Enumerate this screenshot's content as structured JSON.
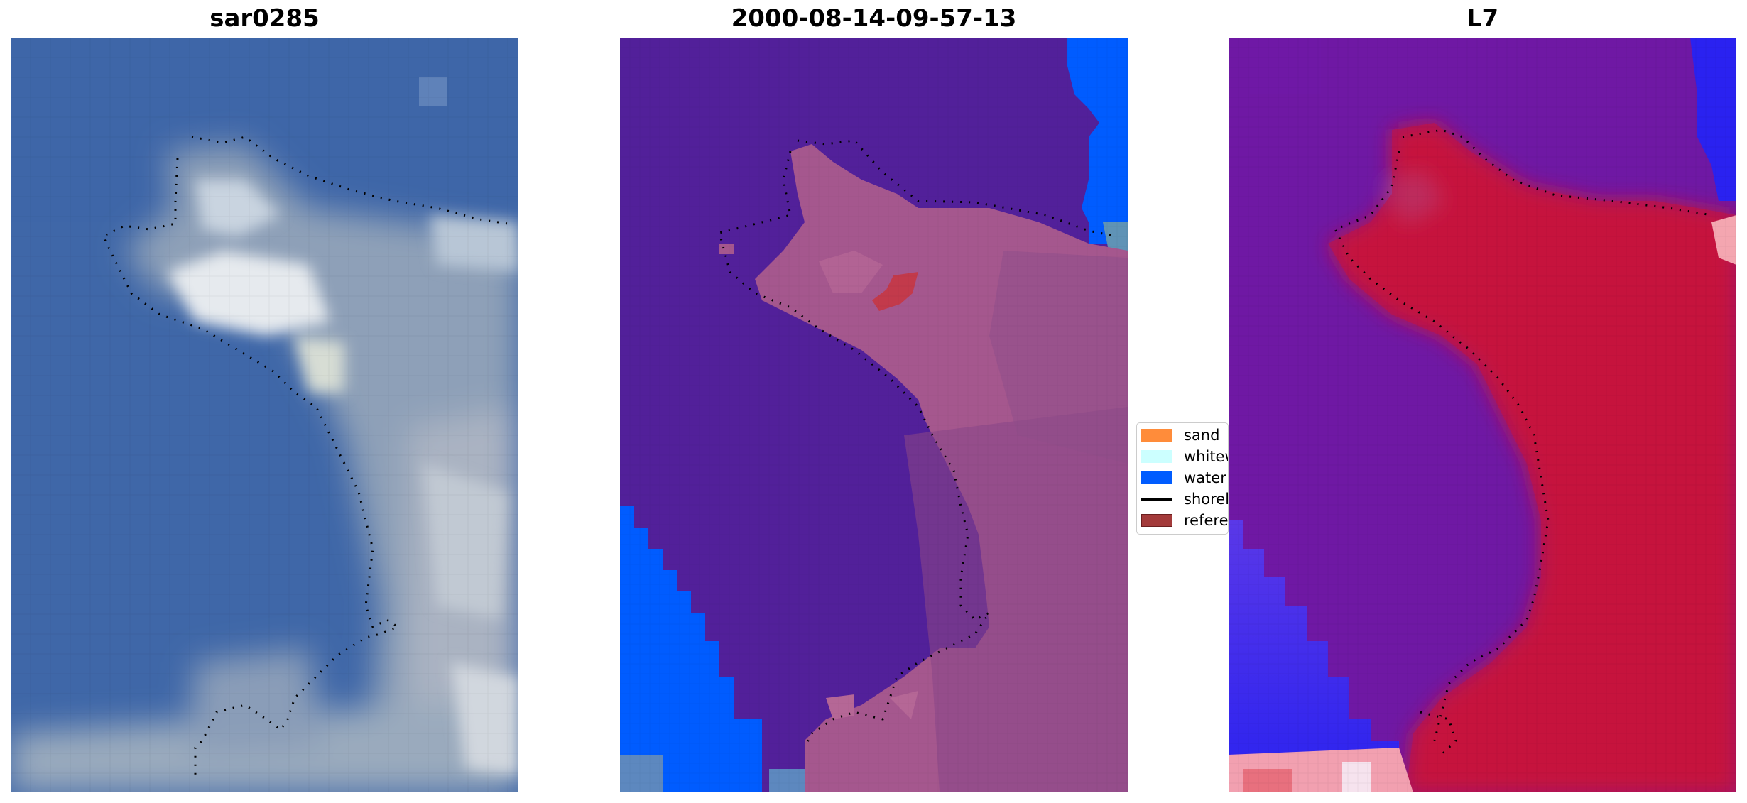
{
  "panels": [
    {
      "title": "sar0285"
    },
    {
      "title": "2000-08-14-09-57-13"
    },
    {
      "title": "L7"
    }
  ],
  "legend": {
    "items": [
      {
        "label": "sand",
        "color": "#ff8c3a"
      },
      {
        "label": "whitewater",
        "color": "#ccffff"
      },
      {
        "label": "water",
        "color": "#005cff"
      },
      {
        "label": "shoreline",
        "color": "#000000"
      },
      {
        "label": "reference shoreline",
        "color": "#a33a3a"
      }
    ]
  },
  "colors": {
    "rgb_water": "#3f67a8",
    "rgb_foam": "#d8e2ea",
    "class_water": "#005cff",
    "class_land": "#52209a",
    "class_pink": "#a5578e",
    "class_reference": "#a33a3a",
    "mndwi_purple": "#6f18a4",
    "mndwi_red": "#c6123e",
    "mndwi_blue": "#2a22f0"
  }
}
